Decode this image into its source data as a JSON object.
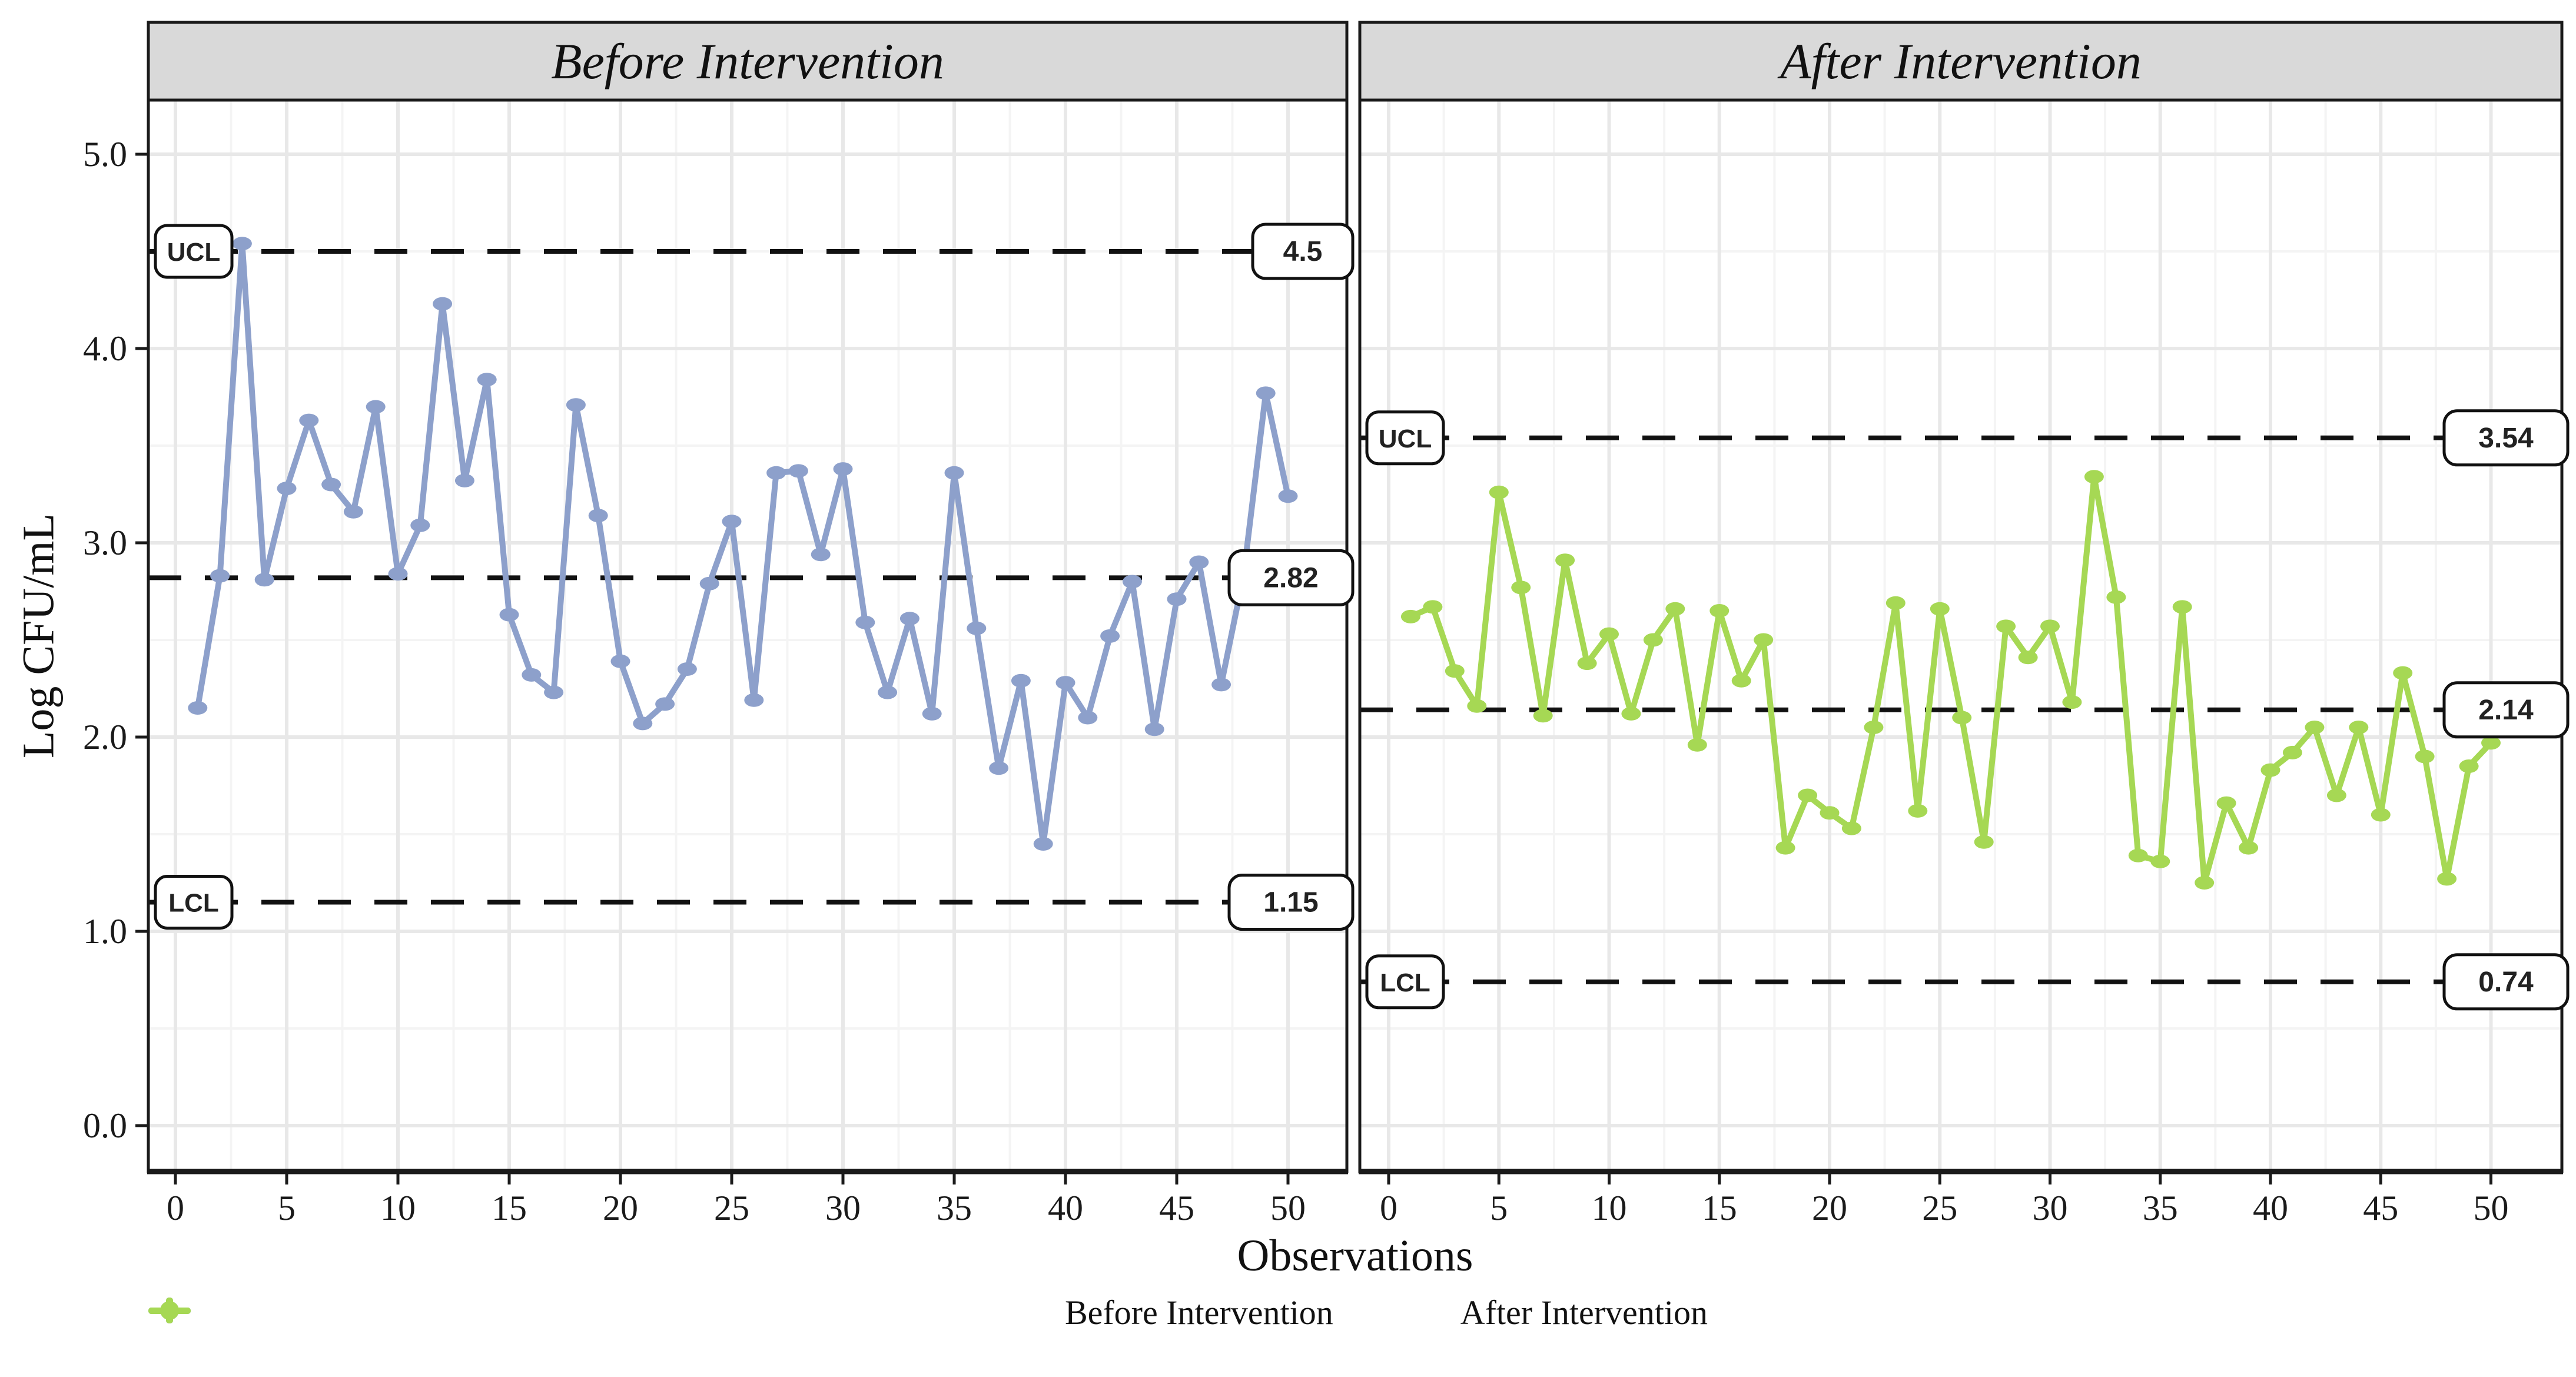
{
  "figure": {
    "background": "#ffffff",
    "panel_border_color": "#1a1a1a",
    "strip_background": "#d9d9d9",
    "gridline_major_color": "#e8e8e8",
    "gridline_minor_color": "#f4f4f4",
    "control_line_color": "#111111"
  },
  "legend": {
    "items": [
      {
        "label": "Before Intervention"
      },
      {
        "label": "After Intervention"
      }
    ]
  },
  "chart_data": {
    "type": "line",
    "subtype": "control-chart-faceted",
    "xlabel": "Observations",
    "ylabel": "Log CFU/mL",
    "x_ticks": [
      0,
      5,
      10,
      15,
      20,
      25,
      30,
      35,
      40,
      45,
      50
    ],
    "y_ticks": [
      "0.0",
      "1.0",
      "2.0",
      "3.0",
      "4.0",
      "5.0"
    ],
    "xlim": [
      0,
      52
    ],
    "ylim": [
      0,
      5.5
    ],
    "grid": "major+minor",
    "legend_position": "bottom",
    "x_start": 1,
    "panels": [
      {
        "title": "Before Intervention",
        "color": "#8DA0CB",
        "ucl": 4.5,
        "cl": 2.82,
        "lcl": 1.15,
        "ucl_label": "UCL",
        "lcl_label": "LCL",
        "ucl_value_label": "4.5",
        "cl_value_label": "2.82",
        "lcl_value_label": "1.15",
        "values": [
          2.15,
          2.83,
          4.54,
          2.81,
          3.28,
          3.63,
          3.3,
          3.16,
          3.7,
          2.84,
          3.09,
          4.23,
          3.32,
          3.84,
          2.63,
          2.32,
          2.23,
          3.71,
          3.14,
          2.39,
          2.07,
          2.17,
          2.35,
          2.79,
          3.11,
          2.19,
          3.36,
          3.37,
          2.94,
          3.38,
          2.59,
          2.23,
          2.61,
          2.12,
          3.36,
          2.56,
          1.84,
          2.29,
          1.45,
          2.28,
          2.1,
          2.52,
          2.8,
          2.04,
          2.71,
          2.9,
          2.27,
          2.83,
          3.77,
          3.24
        ]
      },
      {
        "title": "After Intervention",
        "color": "#A6D854",
        "ucl": 3.54,
        "cl": 2.14,
        "lcl": 0.74,
        "ucl_label": "UCL",
        "lcl_label": "LCL",
        "ucl_value_label": "3.54",
        "cl_value_label": "2.14",
        "lcl_value_label": "0.74",
        "values": [
          2.62,
          2.67,
          2.34,
          2.16,
          3.26,
          2.77,
          2.11,
          2.91,
          2.38,
          2.53,
          2.12,
          2.5,
          2.66,
          1.96,
          2.65,
          2.29,
          2.5,
          1.43,
          1.7,
          1.61,
          1.53,
          2.05,
          2.69,
          1.62,
          2.66,
          2.1,
          1.46,
          2.57,
          2.41,
          2.57,
          2.18,
          3.34,
          2.72,
          1.39,
          1.36,
          2.67,
          1.25,
          1.66,
          1.43,
          1.83,
          1.92,
          2.05,
          1.7,
          2.05,
          1.6,
          2.33,
          1.9,
          1.27,
          1.85,
          1.97
        ]
      }
    ]
  }
}
